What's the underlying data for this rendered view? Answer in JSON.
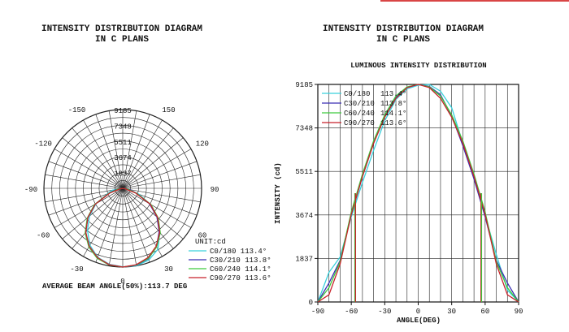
{
  "charts": [
    {
      "title_line1": "INTENSITY DISTRIBUTION DIAGRAM",
      "title_line2": "IN C PLANS",
      "unit": "UNIT:cd",
      "beam_note": "AVERAGE BEAM ANGLE(50%):113.7 DEG"
    },
    {
      "title_line1": "INTENSITY DISTRIBUTION DIAGRAM",
      "title_line2": "IN C PLANS",
      "subtitle": "LUMINOUS INTENSITY DISTRIBUTION",
      "ylabel": "INTENSITY (cd)",
      "xlabel": "ANGLE(DEG)"
    }
  ],
  "chart_data": [
    {
      "type": "polar",
      "title": "INTENSITY DISTRIBUTION DIAGRAM IN C PLANS",
      "unit": "cd",
      "radial_max": 9185,
      "radial_ticks": [
        "9185",
        "7348",
        "5511",
        "3674",
        "1837"
      ],
      "radial_values": [
        9185,
        7348,
        5511,
        3674,
        1837
      ],
      "angle_labels": [
        {
          "text": "0",
          "angle": 0
        },
        {
          "text": "30",
          "angle": 30
        },
        {
          "text": "-30",
          "angle": -30
        },
        {
          "text": "60",
          "angle": 60
        },
        {
          "text": "-60",
          "angle": -60
        },
        {
          "text": "90",
          "angle": 90
        },
        {
          "text": "-90",
          "angle": -90
        },
        {
          "text": "120",
          "angle": 120
        },
        {
          "text": "-120",
          "angle": -120
        },
        {
          "text": "150",
          "angle": 150
        },
        {
          "text": "-150",
          "angle": -150
        }
      ],
      "legend": [
        "C0/180 113.4°",
        "C30/210 113.8°",
        "C60/240 114.1°",
        "C90/270 113.6°"
      ],
      "average_beam_angle": 113.7
    },
    {
      "type": "line",
      "title": "LUMINOUS INTENSITY DISTRIBUTION",
      "xlabel": "ANGLE(DEG)",
      "ylabel": "INTENSITY (cd)",
      "xlim": [
        -90,
        90
      ],
      "ylim": [
        0,
        9185
      ],
      "x_ticks": [
        "-90",
        "-60",
        "-30",
        "0",
        "30",
        "60",
        "90"
      ],
      "x_tick_values": [
        -90,
        -60,
        -30,
        0,
        30,
        60,
        90
      ],
      "y_ticks": [
        "0",
        "1837",
        "3674",
        "5511",
        "7348",
        "9185"
      ],
      "y_tick_values": [
        0,
        1837,
        3674,
        5511,
        7348,
        9185
      ],
      "beam_edges": [
        -56.8,
        -56.2,
        56.2,
        56.8
      ],
      "x": [
        -90,
        -80,
        -70,
        -60,
        -50,
        -40,
        -30,
        -20,
        -10,
        0,
        10,
        20,
        30,
        40,
        50,
        60,
        70,
        80,
        90
      ],
      "series": [
        {
          "name": "C0/180",
          "beam_angle": "113.4°",
          "color": "#39d0dc",
          "values": [
            0,
            1250,
            1900,
            3600,
            5050,
            6400,
            7650,
            8550,
            9000,
            9150,
            9185,
            8900,
            8200,
            6700,
            5200,
            3650,
            2000,
            500,
            0
          ]
        },
        {
          "name": "C30/210",
          "beam_angle": "113.8°",
          "color": "#3b2fb5",
          "values": [
            0,
            800,
            1750,
            3700,
            5300,
            6700,
            7850,
            8650,
            9050,
            9185,
            9100,
            8750,
            7850,
            6600,
            5200,
            3600,
            1750,
            800,
            0
          ]
        },
        {
          "name": "C60/240",
          "beam_angle": "114.1°",
          "color": "#3ec93e",
          "values": [
            0,
            600,
            1700,
            3800,
            5400,
            6800,
            7900,
            8700,
            9080,
            9185,
            9080,
            8700,
            7900,
            6800,
            5400,
            3800,
            1700,
            600,
            0
          ]
        },
        {
          "name": "C90/270",
          "beam_angle": "113.6°",
          "color": "#c8222a",
          "values": [
            0,
            300,
            1600,
            3700,
            5300,
            6700,
            7800,
            8600,
            9050,
            9185,
            9050,
            8600,
            7800,
            6700,
            5300,
            3700,
            1600,
            300,
            0
          ]
        }
      ]
    }
  ]
}
